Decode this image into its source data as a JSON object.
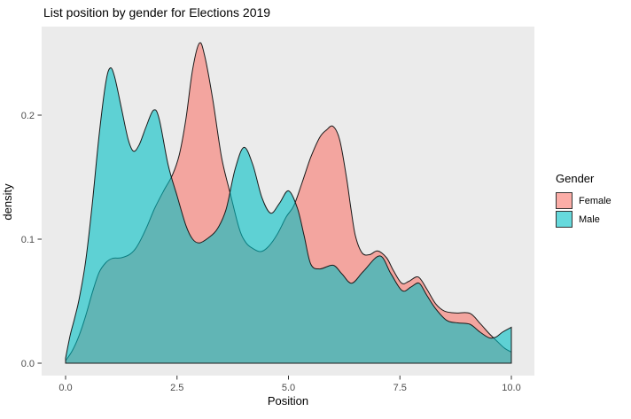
{
  "chart_data": {
    "type": "area",
    "variant": "overlapping-density-plot",
    "title": "List position by gender for Elections 2019",
    "xlabel": "Position",
    "ylabel": "density",
    "xlim": [
      -0.54,
      10.54
    ],
    "ylim": [
      0,
      0.272
    ],
    "grid": false,
    "legend_position": "right",
    "fill_opacity": 0.6,
    "x_ticks": {
      "values": [
        0,
        2.5,
        5,
        7.5,
        10
      ],
      "labels": [
        "0.0",
        "2.5",
        "5.0",
        "7.5",
        "10.0"
      ]
    },
    "y_ticks": {
      "values": [
        0,
        0.1,
        0.2
      ],
      "labels": [
        "0.0",
        "0.1",
        "0.2"
      ]
    },
    "series": [
      {
        "name": "Female",
        "color": "#F8766D",
        "points": [
          [
            0.0,
            0.002
          ],
          [
            0.15,
            0.01
          ],
          [
            0.3,
            0.022
          ],
          [
            0.45,
            0.038
          ],
          [
            0.6,
            0.057
          ],
          [
            0.75,
            0.073
          ],
          [
            0.9,
            0.081
          ],
          [
            1.05,
            0.0845
          ],
          [
            1.25,
            0.085
          ],
          [
            1.45,
            0.088
          ],
          [
            1.6,
            0.094
          ],
          [
            1.8,
            0.108
          ],
          [
            2.0,
            0.125
          ],
          [
            2.2,
            0.139
          ],
          [
            2.4,
            0.152
          ],
          [
            2.55,
            0.168
          ],
          [
            2.7,
            0.197
          ],
          [
            2.85,
            0.237
          ],
          [
            3.0,
            0.258
          ],
          [
            3.12,
            0.248
          ],
          [
            3.3,
            0.213
          ],
          [
            3.5,
            0.166
          ],
          [
            3.7,
            0.136
          ],
          [
            3.9,
            0.108
          ],
          [
            4.05,
            0.097
          ],
          [
            4.2,
            0.0925
          ],
          [
            4.38,
            0.09
          ],
          [
            4.55,
            0.094
          ],
          [
            4.75,
            0.104
          ],
          [
            4.95,
            0.118
          ],
          [
            5.12,
            0.127
          ],
          [
            5.3,
            0.145
          ],
          [
            5.5,
            0.166
          ],
          [
            5.7,
            0.182
          ],
          [
            5.85,
            0.188
          ],
          [
            6.0,
            0.191
          ],
          [
            6.15,
            0.18
          ],
          [
            6.3,
            0.15
          ],
          [
            6.4,
            0.125
          ],
          [
            6.5,
            0.103
          ],
          [
            6.65,
            0.089
          ],
          [
            6.82,
            0.0875
          ],
          [
            7.0,
            0.0905
          ],
          [
            7.2,
            0.085
          ],
          [
            7.35,
            0.075
          ],
          [
            7.54,
            0.0645
          ],
          [
            7.7,
            0.066
          ],
          [
            7.91,
            0.0695
          ],
          [
            8.1,
            0.06
          ],
          [
            8.3,
            0.048
          ],
          [
            8.5,
            0.042
          ],
          [
            8.75,
            0.0405
          ],
          [
            9.07,
            0.0402
          ],
          [
            9.3,
            0.032
          ],
          [
            9.5,
            0.024
          ],
          [
            9.7,
            0.017
          ],
          [
            9.85,
            0.012
          ],
          [
            10.0,
            0.009
          ]
        ]
      },
      {
        "name": "Male",
        "color": "#00BFC4",
        "points": [
          [
            0.0,
            0.004
          ],
          [
            0.1,
            0.022
          ],
          [
            0.2,
            0.036
          ],
          [
            0.3,
            0.051
          ],
          [
            0.45,
            0.082
          ],
          [
            0.6,
            0.129
          ],
          [
            0.75,
            0.183
          ],
          [
            0.9,
            0.226
          ],
          [
            1.0,
            0.238
          ],
          [
            1.1,
            0.231
          ],
          [
            1.25,
            0.206
          ],
          [
            1.4,
            0.181
          ],
          [
            1.52,
            0.171
          ],
          [
            1.65,
            0.176
          ],
          [
            1.8,
            0.19
          ],
          [
            1.97,
            0.204
          ],
          [
            2.1,
            0.197
          ],
          [
            2.3,
            0.16
          ],
          [
            2.5,
            0.135
          ],
          [
            2.7,
            0.111
          ],
          [
            2.85,
            0.1
          ],
          [
            3.0,
            0.097
          ],
          [
            3.2,
            0.101
          ],
          [
            3.4,
            0.108
          ],
          [
            3.6,
            0.124
          ],
          [
            3.8,
            0.156
          ],
          [
            4.0,
            0.174
          ],
          [
            4.2,
            0.16
          ],
          [
            4.4,
            0.134
          ],
          [
            4.6,
            0.121
          ],
          [
            4.8,
            0.129
          ],
          [
            5.0,
            0.139
          ],
          [
            5.2,
            0.125
          ],
          [
            5.35,
            0.103
          ],
          [
            5.5,
            0.08
          ],
          [
            5.7,
            0.076
          ],
          [
            6.0,
            0.079
          ],
          [
            6.2,
            0.072
          ],
          [
            6.42,
            0.0645
          ],
          [
            6.68,
            0.074
          ],
          [
            7.05,
            0.0865
          ],
          [
            7.3,
            0.072
          ],
          [
            7.55,
            0.0585
          ],
          [
            7.75,
            0.0615
          ],
          [
            7.93,
            0.0645
          ],
          [
            8.1,
            0.055
          ],
          [
            8.3,
            0.044
          ],
          [
            8.55,
            0.0345
          ],
          [
            8.8,
            0.0325
          ],
          [
            9.07,
            0.0314
          ],
          [
            9.3,
            0.025
          ],
          [
            9.5,
            0.0205
          ],
          [
            9.65,
            0.021
          ],
          [
            9.8,
            0.025
          ],
          [
            10.0,
            0.029
          ]
        ]
      }
    ]
  },
  "legend": {
    "title": "Gender",
    "items": [
      {
        "label": "Female",
        "color": "#F8766D"
      },
      {
        "label": "Male",
        "color": "#00BFC4"
      }
    ]
  },
  "colors": {
    "panel_background": "#EBEBEB",
    "curve_outline": "#1A1A1A",
    "tick_label": "#4D4D4D",
    "axis_tick": "#333333",
    "title_text": "#000000"
  }
}
